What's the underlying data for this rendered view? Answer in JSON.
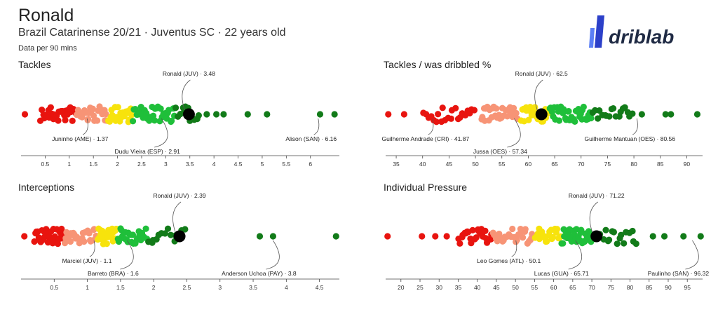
{
  "header": {
    "name": "Ronald",
    "subtitle": "Brazil Catarinense 20/21 · Juventus SC · 22 years old",
    "note": "Data per 90 mins",
    "brand": "driblab"
  },
  "colors": {
    "red": "#e8140f",
    "salmon": "#f79476",
    "yellow": "#f7e30c",
    "green": "#1fbf3a",
    "darkgreen": "#127b19",
    "highlight": "#000000"
  },
  "chart_data": [
    {
      "type": "scatter",
      "title": "Tackles",
      "xlim": [
        0,
        6.6
      ],
      "ticks": [
        0.5,
        1,
        1.5,
        2,
        2.5,
        3,
        3.5,
        4,
        4.5,
        5,
        5.5,
        6
      ],
      "tick_labels": [
        "0.5",
        "1",
        "1.5",
        "2",
        "2.5",
        "3",
        "3.5",
        "4",
        "4.5",
        "5",
        "5.5",
        "6"
      ],
      "groups": [
        {
          "color": "red",
          "range": [
            0.4,
            1.15
          ],
          "count": 30,
          "fixed": [
            0.08
          ]
        },
        {
          "color": "salmon",
          "range": [
            1.15,
            1.8
          ],
          "count": 30
        },
        {
          "color": "yellow",
          "range": [
            1.8,
            2.3
          ],
          "count": 28
        },
        {
          "color": "green",
          "range": [
            2.3,
            3.2
          ],
          "count": 32
        },
        {
          "color": "darkgreen",
          "range": [
            3.2,
            3.7
          ],
          "count": 12,
          "fixed": [
            3.85,
            4.05,
            4.2,
            4.7,
            5.1,
            6.2,
            6.5
          ]
        }
      ],
      "highlight": {
        "label": "Ronald (JUV) · 3.48",
        "value": 3.48
      },
      "annotations": [
        {
          "label": "Ronald (JUV) · 3.48",
          "value": 3.48,
          "side": "top"
        },
        {
          "label": "Juninho (AME) · 1.37",
          "value": 1.37,
          "side": "bottom"
        },
        {
          "label": "Dudu Vieira (ESP) · 2.91",
          "value": 2.91,
          "side": "bottom2"
        },
        {
          "label": "Alison (SAN) · 6.16",
          "value": 6.16,
          "side": "bottom"
        }
      ]
    },
    {
      "type": "scatter",
      "title": "Tackles / was dribbled %",
      "xlim": [
        33,
        93
      ],
      "ticks": [
        35,
        40,
        45,
        50,
        55,
        60,
        65,
        70,
        75,
        80,
        85,
        90
      ],
      "tick_labels": [
        "35",
        "40",
        "45",
        "50",
        "55",
        "60",
        "65",
        "70",
        "75",
        "80",
        "85",
        "90"
      ],
      "groups": [
        {
          "color": "red",
          "range": [
            40,
            50
          ],
          "count": 22,
          "fixed": [
            33.5,
            36.5
          ]
        },
        {
          "color": "salmon",
          "range": [
            51,
            58
          ],
          "count": 30
        },
        {
          "color": "yellow",
          "range": [
            58.5,
            64
          ],
          "count": 24
        },
        {
          "color": "green",
          "range": [
            64,
            72
          ],
          "count": 36
        },
        {
          "color": "darkgreen",
          "range": [
            72,
            80
          ],
          "count": 18,
          "fixed": [
            81.5,
            86,
            87,
            92
          ]
        }
      ],
      "highlight": {
        "label": "Ronald (JUV) · 62.5",
        "value": 62.5
      },
      "annotations": [
        {
          "label": "Ronald (JUV) · 62.5",
          "value": 62.5,
          "side": "top"
        },
        {
          "label": "Guilherme Andrade (CRI) · 41.87",
          "value": 41.87,
          "side": "bottom"
        },
        {
          "label": "Jussa (OES) · 57.34",
          "value": 57.34,
          "side": "bottom2"
        },
        {
          "label": "Guilherme Mantuan (OES) · 80.56",
          "value": 80.56,
          "side": "bottom"
        }
      ]
    },
    {
      "type": "scatter",
      "title": "Interceptions",
      "xlim": [
        0,
        4.8
      ],
      "ticks": [
        0.5,
        1,
        1.5,
        2,
        2.5,
        3,
        3.5,
        4,
        4.5
      ],
      "tick_labels": [
        "0.5",
        "1",
        "1.5",
        "2",
        "2.5",
        "3",
        "3.5",
        "4",
        "4.5"
      ],
      "groups": [
        {
          "color": "red",
          "range": [
            0.2,
            0.65
          ],
          "count": 30,
          "fixed": [
            0.05
          ]
        },
        {
          "color": "salmon",
          "range": [
            0.65,
            1.15
          ],
          "count": 30
        },
        {
          "color": "yellow",
          "range": [
            1.15,
            1.45
          ],
          "count": 26
        },
        {
          "color": "green",
          "range": [
            1.45,
            1.9
          ],
          "count": 30
        },
        {
          "color": "darkgreen",
          "range": [
            1.9,
            2.5
          ],
          "count": 14,
          "fixed": [
            3.6,
            3.8,
            4.75
          ]
        }
      ],
      "highlight": {
        "label": "Ronald (JUV) · 2.39",
        "value": 2.39
      },
      "annotations": [
        {
          "label": "Ronald (JUV) · 2.39",
          "value": 2.39,
          "side": "top"
        },
        {
          "label": "Marciel (JUV) · 1.1",
          "value": 1.1,
          "side": "bottom"
        },
        {
          "label": "Barreto (BRA) · 1.6",
          "value": 1.6,
          "side": "bottom2"
        },
        {
          "label": "Anderson Uchoa (PAY) · 3.8",
          "value": 3.8,
          "side": "bottom2"
        }
      ]
    },
    {
      "type": "scatter",
      "title": "Individual Pressure",
      "xlim": [
        16,
        99
      ],
      "ticks": [
        20,
        25,
        30,
        35,
        40,
        45,
        50,
        55,
        60,
        65,
        70,
        75,
        80,
        85,
        90,
        95
      ],
      "tick_labels": [
        "20",
        "25",
        "30",
        "35",
        "40",
        "45",
        "50",
        "55",
        "60",
        "65",
        "70",
        "75",
        "80",
        "85",
        "90",
        "95"
      ],
      "groups": [
        {
          "color": "red",
          "range": [
            35,
            44
          ],
          "count": 24,
          "fixed": [
            16.5,
            25.5,
            29,
            32
          ]
        },
        {
          "color": "salmon",
          "range": [
            44,
            55
          ],
          "count": 32
        },
        {
          "color": "yellow",
          "range": [
            55,
            62
          ],
          "count": 22
        },
        {
          "color": "green",
          "range": [
            62,
            70
          ],
          "count": 34
        },
        {
          "color": "darkgreen",
          "range": [
            72,
            82
          ],
          "count": 16,
          "fixed": [
            86,
            89,
            94,
            98.5
          ]
        }
      ],
      "highlight": {
        "label": "Ronald (JUV) · 71.22",
        "value": 71.22
      },
      "annotations": [
        {
          "label": "Ronald (JUV) · 71.22",
          "value": 71.22,
          "side": "top"
        },
        {
          "label": "Leo Gomes (ATL) · 50.1",
          "value": 50.1,
          "side": "bottom"
        },
        {
          "label": "Lucas (GUA) · 65.71",
          "value": 65.71,
          "side": "bottom2"
        },
        {
          "label": "Paulinho (SAN) · 96.32",
          "value": 96.32,
          "side": "bottom2"
        }
      ]
    }
  ]
}
